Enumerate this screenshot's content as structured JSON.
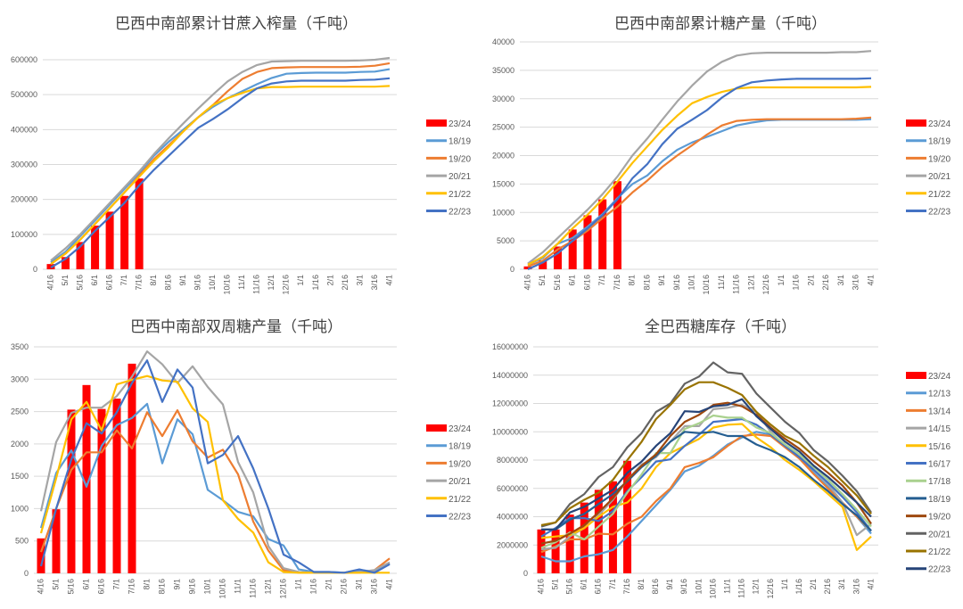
{
  "chart_data": [
    {
      "type": "bar+line",
      "title": "巴西中南部累计甘蔗入榨量（千吨）",
      "ylim": [
        0,
        600000
      ],
      "ystep": 100000,
      "grid": true,
      "legend": "right",
      "categories": [
        "4/16",
        "5/1",
        "5/16",
        "6/1",
        "6/16",
        "7/1",
        "7/16",
        "8/1",
        "8/16",
        "9/1",
        "9/16",
        "10/1",
        "10/16",
        "11/1",
        "11/16",
        "12/1",
        "12/16",
        "1/1",
        "1/16",
        "2/1",
        "2/16",
        "3/1",
        "3/16",
        "4/1"
      ],
      "bars": {
        "name": "23/24",
        "color": "#FF0000",
        "values": [
          15000,
          35000,
          78000,
          125000,
          165000,
          210000,
          260000
        ]
      },
      "series": [
        {
          "name": "18/19",
          "color": "#5B9BD5",
          "values": [
            20000,
            50000,
            95000,
            140000,
            185000,
            230000,
            275000,
            325000,
            365000,
            400000,
            435000,
            465000,
            490000,
            510000,
            530000,
            548000,
            560000,
            562000,
            563000,
            563000,
            563000,
            565000,
            566000,
            573000
          ]
        },
        {
          "name": "19/20",
          "color": "#ED7D31",
          "values": [
            15000,
            45000,
            85000,
            130000,
            175000,
            220000,
            268000,
            315000,
            355000,
            395000,
            435000,
            470000,
            510000,
            545000,
            565000,
            576000,
            578000,
            579000,
            579000,
            579000,
            579000,
            580000,
            583000,
            590000
          ]
        },
        {
          "name": "20/21",
          "color": "#A5A5A5",
          "values": [
            25000,
            60000,
            100000,
            145000,
            190000,
            235000,
            280000,
            330000,
            375000,
            418000,
            460000,
            500000,
            538000,
            565000,
            585000,
            595000,
            596000,
            597000,
            597000,
            597000,
            597000,
            598000,
            600000,
            605000
          ]
        },
        {
          "name": "21/22",
          "color": "#FFC000",
          "values": [
            15000,
            45000,
            85000,
            130000,
            175000,
            220000,
            265000,
            310000,
            350000,
            395000,
            435000,
            470000,
            490000,
            505000,
            518000,
            522000,
            522000,
            523000,
            523000,
            523000,
            523000,
            523000,
            523000,
            525000
          ]
        },
        {
          "name": "22/23",
          "color": "#4472C4",
          "values": [
            5000,
            30000,
            65000,
            110000,
            150000,
            190000,
            240000,
            285000,
            325000,
            365000,
            405000,
            430000,
            458000,
            490000,
            518000,
            532000,
            538000,
            540000,
            540000,
            540000,
            540000,
            542000,
            543000,
            547000
          ]
        }
      ]
    },
    {
      "type": "bar+line",
      "title": "巴西中南部累计糖产量（千吨）",
      "ylim": [
        0,
        40000
      ],
      "ystep": 5000,
      "grid": true,
      "legend": "right",
      "categories": [
        "4/16",
        "5/1",
        "5/16",
        "6/1",
        "6/16",
        "7/1",
        "7/16",
        "8/1",
        "8/16",
        "9/1",
        "9/16",
        "10/1",
        "10/16",
        "11/1",
        "11/16",
        "12/1",
        "12/16",
        "1/1",
        "1/16",
        "2/1",
        "2/16",
        "3/1",
        "3/16",
        "4/1"
      ],
      "bars": {
        "name": "23/24",
        "color": "#FF0000",
        "values": [
          500,
          1600,
          4000,
          7000,
          9500,
          12300,
          15500
        ]
      },
      "series": [
        {
          "name": "18/19",
          "color": "#5B9BD5",
          "values": [
            800,
            2000,
            4500,
            5500,
            7500,
            9700,
            12500,
            15000,
            16500,
            19000,
            21000,
            22300,
            23300,
            24300,
            25300,
            25800,
            26200,
            26300,
            26300,
            26300,
            26300,
            26300,
            26300,
            26400
          ]
        },
        {
          "name": "19/20",
          "color": "#ED7D31",
          "values": [
            500,
            1500,
            3500,
            5000,
            6800,
            9000,
            11000,
            13500,
            15600,
            18000,
            20000,
            21800,
            23700,
            25300,
            26100,
            26300,
            26400,
            26400,
            26400,
            26400,
            26400,
            26400,
            26500,
            26700
          ]
        },
        {
          "name": "20/21",
          "color": "#A5A5A5",
          "values": [
            1000,
            3000,
            5500,
            8000,
            10500,
            13200,
            16300,
            20000,
            23000,
            26300,
            29500,
            32300,
            34800,
            36500,
            37600,
            38000,
            38100,
            38100,
            38100,
            38100,
            38100,
            38200,
            38200,
            38400
          ]
        },
        {
          "name": "21/22",
          "color": "#FFC000",
          "values": [
            800,
            2200,
            4500,
            7200,
            9600,
            12300,
            15400,
            18700,
            21600,
            24500,
            27000,
            29200,
            30300,
            31200,
            31800,
            32000,
            32000,
            32000,
            32000,
            32000,
            32000,
            32000,
            32000,
            32100
          ]
        },
        {
          "name": "22/23",
          "color": "#4472C4",
          "values": [
            0,
            1200,
            2800,
            5000,
            7200,
            9500,
            12300,
            16000,
            18500,
            22000,
            24700,
            26300,
            28000,
            30200,
            31900,
            32900,
            33200,
            33400,
            33500,
            33500,
            33500,
            33500,
            33500,
            33600
          ]
        }
      ]
    },
    {
      "type": "bar+line",
      "title": "巴西中南部双周糖产量（千吨）",
      "ylim": [
        0,
        3500
      ],
      "ystep": 500,
      "grid": true,
      "legend": "right",
      "categories": [
        "4/16",
        "5/1",
        "5/16",
        "6/1",
        "6/16",
        "7/1",
        "7/16",
        "8/1",
        "8/16",
        "9/1",
        "9/16",
        "10/1",
        "10/16",
        "11/1",
        "11/16",
        "12/1",
        "12/16",
        "1/1",
        "1/16",
        "2/1",
        "2/16",
        "3/1",
        "3/16",
        "4/1"
      ],
      "bars": {
        "name": "23/24",
        "color": "#FF0000",
        "values": [
          540,
          990,
          2530,
          2910,
          2540,
          2700,
          3240
        ]
      },
      "series": [
        {
          "name": "18/19",
          "color": "#5B9BD5",
          "values": [
            700,
            1550,
            1900,
            1340,
            1970,
            2290,
            2400,
            2620,
            1700,
            2380,
            2150,
            1290,
            1130,
            950,
            880,
            530,
            430,
            60,
            20,
            20,
            10,
            50,
            30,
            150
          ]
        },
        {
          "name": "19/20",
          "color": "#ED7D31",
          "values": [
            330,
            1000,
            1600,
            1870,
            1870,
            2210,
            1930,
            2490,
            2120,
            2520,
            2040,
            1790,
            1910,
            1530,
            800,
            350,
            50,
            10,
            10,
            10,
            10,
            10,
            50,
            230
          ]
        },
        {
          "name": "20/21",
          "color": "#A5A5A5",
          "values": [
            960,
            2030,
            2480,
            2560,
            2560,
            2740,
            3040,
            3430,
            3230,
            2940,
            3200,
            2880,
            2610,
            1720,
            1250,
            420,
            80,
            20,
            10,
            10,
            10,
            20,
            50,
            170
          ]
        },
        {
          "name": "21/22",
          "color": "#FFC000",
          "values": [
            620,
            1470,
            2380,
            2650,
            2210,
            2920,
            2990,
            3050,
            2980,
            2960,
            2550,
            2340,
            1130,
            840,
            630,
            170,
            20,
            10,
            10,
            10,
            10,
            10,
            10,
            10
          ]
        },
        {
          "name": "22/23",
          "color": "#4472C4",
          "values": [
            110,
            1000,
            1760,
            2320,
            2160,
            2490,
            2940,
            3290,
            2650,
            3150,
            2870,
            1700,
            1830,
            2120,
            1620,
            1000,
            290,
            170,
            20,
            20,
            10,
            60,
            10,
            140
          ]
        }
      ]
    },
    {
      "type": "bar+line",
      "title": "全巴西糖库存（千吨）",
      "ylim": [
        0,
        16000000
      ],
      "ystep": 2000000,
      "grid": true,
      "legend": "right",
      "categories": [
        "4/16",
        "5/1",
        "5/16",
        "6/1",
        "6/16",
        "7/1",
        "7/16",
        "8/1",
        "8/16",
        "9/1",
        "9/16",
        "10/1",
        "10/16",
        "11/1",
        "11/16",
        "12/1",
        "12/16",
        "1/1",
        "1/16",
        "2/1",
        "2/16",
        "3/1",
        "3/16",
        "4/1"
      ],
      "bars": {
        "name": "23/24",
        "color": "#FF0000",
        "values": [
          3100000,
          3100000,
          4150000,
          5000000,
          5900000,
          6500000,
          7950000
        ]
      },
      "series": [
        {
          "name": "12/13",
          "color": "#5B9BD5",
          "values": [
            1200000,
            850000,
            850000,
            1200000,
            1350000,
            1650000,
            2600000,
            3700000,
            4800000,
            5900000,
            7200000,
            7600000,
            8300000,
            9100000,
            9600000,
            10000000,
            9800000,
            9000000,
            8200000,
            7100000,
            6100000,
            5000000,
            4000000,
            2800000
          ]
        },
        {
          "name": "13/14",
          "color": "#ED7D31",
          "values": [
            1500000,
            1900000,
            2400000,
            2400000,
            2800000,
            2750000,
            3500000,
            4000000,
            5100000,
            6000000,
            7500000,
            7800000,
            8200000,
            9000000,
            9700000,
            9800000,
            9700000,
            8900000,
            8100000,
            7000000,
            6000000,
            5000000,
            4000000,
            3000000
          ]
        },
        {
          "name": "14/15",
          "color": "#A5A5A5",
          "values": [
            1700000,
            1800000,
            2600000,
            3200000,
            4100000,
            5200000,
            6600000,
            7700000,
            8200000,
            9300000,
            10400000,
            10400000,
            11600000,
            11700000,
            11900000,
            11400000,
            10000000,
            9000000,
            8400000,
            7300000,
            6300000,
            5000000,
            2700000,
            3500000
          ]
        },
        {
          "name": "15/16",
          "color": "#FFC000",
          "values": [
            2500000,
            2600000,
            2700000,
            3200000,
            4000000,
            4700000,
            5000000,
            6000000,
            7500000,
            8500000,
            9000000,
            9500000,
            10300000,
            10500000,
            10550000,
            9600000,
            8900000,
            8000000,
            7300000,
            6500000,
            5600000,
            4700000,
            1650000,
            2600000
          ]
        },
        {
          "name": "16/17",
          "color": "#4472C4",
          "values": [
            2600000,
            3200000,
            3900000,
            3900000,
            3700000,
            4400000,
            5800000,
            6800000,
            7900000,
            8050000,
            9000000,
            9800000,
            10700000,
            10800000,
            10900000,
            10500000,
            9800000,
            9000000,
            8200000,
            7300000,
            6400000,
            5400000,
            4300000,
            3000000
          ]
        },
        {
          "name": "17/18",
          "color": "#A9D18E",
          "values": [
            1800000,
            2200000,
            2900000,
            2400000,
            3300000,
            4200000,
            5700000,
            7000000,
            8500000,
            8500000,
            10200000,
            10600000,
            11150000,
            11000000,
            11000000,
            10300000,
            9900000,
            9100000,
            8400000,
            7500000,
            6600000,
            5600000,
            4500000,
            3300000
          ]
        },
        {
          "name": "18/19",
          "color": "#255E91",
          "values": [
            3100000,
            3100000,
            3800000,
            4200000,
            4900000,
            5600000,
            6500000,
            7500000,
            8300000,
            9300000,
            10000000,
            9900000,
            10000000,
            9700000,
            9700000,
            9100000,
            8700000,
            8200000,
            7500000,
            6600000,
            5800000,
            4900000,
            4100000,
            3000000
          ]
        },
        {
          "name": "19/20",
          "color": "#9E480E",
          "values": [
            2100000,
            2300000,
            2800000,
            3400000,
            4300000,
            5300000,
            6600000,
            7600000,
            8400000,
            9700000,
            10700000,
            11200000,
            11900000,
            12050000,
            11800000,
            11200000,
            10300000,
            9500000,
            8800000,
            7900000,
            7100000,
            6200000,
            5000000,
            3500000
          ]
        },
        {
          "name": "20/21",
          "color": "#636363",
          "values": [
            3300000,
            3600000,
            4900000,
            5600000,
            6800000,
            7500000,
            8900000,
            9900000,
            11400000,
            12000000,
            13400000,
            13900000,
            14900000,
            14200000,
            14100000,
            12700000,
            11700000,
            10700000,
            9900000,
            8700000,
            7900000,
            6900000,
            5800000,
            4300000
          ]
        },
        {
          "name": "21/22",
          "color": "#997300",
          "values": [
            3400000,
            3600000,
            4600000,
            5200000,
            5700000,
            6600000,
            8000000,
            9300000,
            10900000,
            11900000,
            13000000,
            13500000,
            13500000,
            13100000,
            12600000,
            11400000,
            10500000,
            9700000,
            9200000,
            8300000,
            7500000,
            6500000,
            5500000,
            4200000
          ]
        },
        {
          "name": "22/23",
          "color": "#264478",
          "values": [
            3100000,
            3100000,
            4300000,
            4700000,
            5300000,
            5900000,
            7100000,
            7900000,
            9000000,
            9900000,
            11450000,
            11400000,
            11800000,
            11900000,
            12300000,
            11100000,
            10200000,
            9300000,
            8600000,
            7600000,
            6800000,
            5900000,
            5000000,
            4000000
          ]
        }
      ]
    }
  ]
}
